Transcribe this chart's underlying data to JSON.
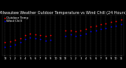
{
  "title": "Milwaukee Weather Outdoor Temperature vs Wind Chill (24 Hours)",
  "title_fontsize": 3.5,
  "background_color": "#000000",
  "plot_bg_color": "#000000",
  "text_color": "#ffffff",
  "grid_color": "#888888",
  "hours": [
    0,
    1,
    2,
    3,
    4,
    5,
    6,
    7,
    8,
    9,
    10,
    11,
    12,
    13,
    14,
    15,
    16,
    17,
    18,
    19,
    20,
    21,
    22,
    23
  ],
  "temp": [
    18,
    20,
    22,
    25,
    30,
    33,
    32,
    30,
    29,
    30,
    null,
    null,
    38,
    39,
    37,
    38,
    41,
    45,
    47,
    49,
    51,
    53,
    55,
    57
  ],
  "windchill": [
    10,
    12,
    14,
    18,
    23,
    26,
    25,
    23,
    21,
    22,
    null,
    null,
    29,
    31,
    29,
    30,
    33,
    37,
    39,
    41,
    43,
    45,
    47,
    49
  ],
  "temp_color": "#ff0000",
  "windchill_color": "#0000ff",
  "marker_size": 1.5,
  "ylim": [
    -5,
    65
  ],
  "xlim": [
    -0.5,
    23.5
  ],
  "tick_label_fontsize": 2.5,
  "legend_fontsize": 2.8,
  "legend_labels": [
    "Outdoor Temp",
    "Wind Chill"
  ],
  "x_tick_labels": [
    "12",
    "1",
    "2",
    "3",
    "4",
    "5",
    "6",
    "7",
    "8",
    "9",
    "10",
    "11",
    "12",
    "1",
    "2",
    "3",
    "4",
    "5",
    "6",
    "7",
    "8",
    "9",
    "10",
    "11"
  ]
}
